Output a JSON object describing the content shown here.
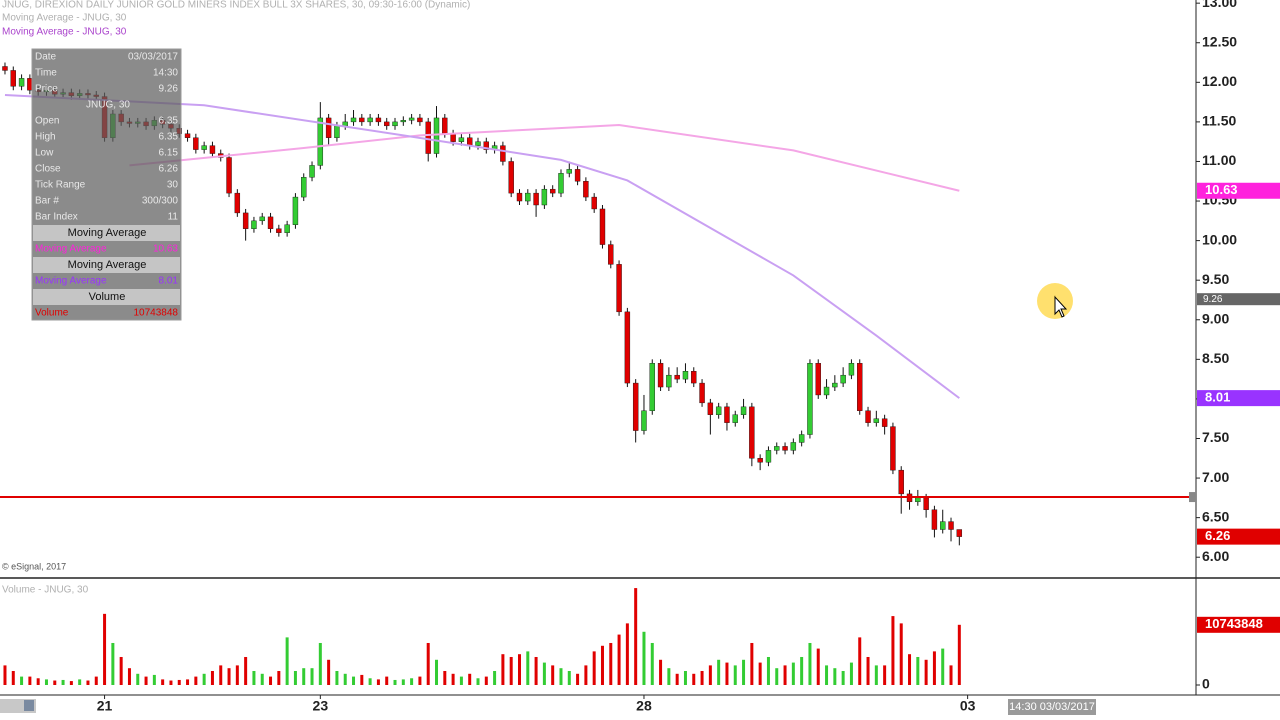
{
  "header": {
    "title": "JNUG, DIREXION DAILY JUNIOR GOLD MINERS INDEX BULL 3X SHARES, 30, 09:30-16:00 (Dynamic)",
    "studies": [
      "Moving Average - JNUG, 30",
      "Moving Average - JNUG, 30"
    ]
  },
  "copyright": "© eSignal, 2017",
  "cursor": {
    "price": 9.26,
    "time_label": "14:30 03/03/2017"
  },
  "data_window": {
    "date_label": "Date",
    "date": "03/03/2017",
    "time_label": "Time",
    "time": "14:30",
    "price_label": "Price",
    "symbol": "JNUG, 30",
    "open_label": "Open",
    "high_label": "High",
    "low_label": "Low",
    "close_label": "Close",
    "tick_range_label": "Tick Range",
    "tick_range": 30,
    "bar_label": "Bar #",
    "bar": "300/300",
    "bar_index_label": "Bar Index",
    "bar_index": 11,
    "study_headers": [
      "Moving Average",
      "Moving Average",
      "Volume"
    ],
    "study_rows": [
      "Moving Average",
      "Moving Average",
      "Volume"
    ]
  },
  "chart_data": {
    "type": "candlestick",
    "up_color": "#33cc33",
    "down_color": "#e00000",
    "open": [
      12.2,
      12.15,
      11.95,
      12.05,
      11.9,
      11.88,
      11.9,
      11.85,
      11.87,
      11.83,
      11.86,
      11.84,
      11.82,
      11.3,
      11.6,
      11.5,
      11.48,
      11.5,
      11.45,
      11.52,
      11.47,
      11.42,
      11.35,
      11.3,
      11.15,
      11.2,
      11.1,
      11.05,
      10.6,
      10.35,
      10.15,
      10.25,
      10.3,
      10.15,
      10.1,
      10.2,
      10.55,
      10.8,
      10.95,
      11.55,
      11.3,
      11.45,
      11.5,
      11.55,
      11.5,
      11.55,
      11.5,
      11.45,
      11.5,
      11.52,
      11.55,
      11.5,
      11.1,
      11.55,
      11.35,
      11.25,
      11.3,
      11.2,
      11.25,
      11.15,
      11.2,
      11.0,
      10.6,
      10.5,
      10.6,
      10.45,
      10.65,
      10.6,
      10.85,
      10.9,
      10.75,
      10.55,
      10.4,
      9.95,
      9.7,
      9.1,
      8.2,
      7.6,
      7.85,
      8.45,
      8.15,
      8.3,
      8.25,
      8.35,
      8.2,
      7.95,
      7.8,
      7.9,
      7.7,
      7.8,
      7.9,
      7.25,
      7.2,
      7.35,
      7.4,
      7.35,
      7.45,
      7.55,
      8.45,
      8.05,
      8.15,
      8.2,
      8.3,
      8.45,
      7.85,
      7.7,
      7.75,
      7.65,
      7.1,
      6.8,
      6.7,
      6.75,
      6.6,
      6.35,
      6.45,
      6.35
    ],
    "high": [
      12.25,
      12.2,
      12.1,
      12.1,
      11.95,
      11.95,
      11.95,
      11.92,
      11.92,
      11.91,
      11.91,
      11.89,
      11.87,
      11.65,
      11.65,
      11.55,
      11.55,
      11.55,
      11.57,
      11.57,
      11.52,
      11.47,
      11.4,
      11.35,
      11.25,
      11.25,
      11.15,
      11.1,
      10.65,
      10.4,
      10.3,
      10.35,
      10.35,
      10.2,
      10.25,
      10.6,
      10.85,
      11.0,
      11.75,
      11.6,
      11.5,
      11.6,
      11.65,
      11.6,
      11.6,
      11.6,
      11.55,
      11.55,
      11.57,
      11.6,
      11.6,
      11.55,
      11.7,
      11.6,
      11.4,
      11.35,
      11.35,
      11.3,
      11.3,
      11.25,
      11.25,
      11.05,
      10.65,
      10.65,
      10.65,
      10.7,
      10.7,
      10.9,
      11.0,
      10.95,
      10.8,
      10.6,
      10.45,
      10.0,
      9.75,
      9.15,
      8.25,
      8.05,
      8.5,
      8.5,
      8.4,
      8.4,
      8.45,
      8.4,
      8.25,
      8.0,
      7.95,
      7.95,
      7.85,
      8.0,
      7.95,
      7.3,
      7.4,
      7.45,
      7.45,
      7.5,
      7.6,
      8.5,
      8.5,
      8.25,
      8.3,
      8.4,
      8.5,
      8.5,
      7.9,
      7.85,
      7.8,
      7.7,
      7.15,
      6.85,
      6.85,
      6.8,
      6.65,
      6.6,
      6.5,
      6.35
    ],
    "low": [
      12.1,
      11.9,
      11.9,
      11.85,
      11.83,
      11.83,
      11.8,
      11.8,
      11.78,
      11.78,
      11.79,
      11.77,
      11.25,
      11.25,
      11.45,
      11.43,
      11.43,
      11.4,
      11.4,
      11.42,
      11.37,
      11.3,
      11.25,
      11.1,
      11.1,
      11.05,
      11.0,
      10.55,
      10.3,
      10.0,
      10.1,
      10.2,
      10.1,
      10.05,
      10.05,
      10.15,
      10.5,
      10.75,
      10.9,
      11.2,
      11.25,
      11.4,
      11.45,
      11.45,
      11.45,
      11.45,
      11.4,
      11.4,
      11.45,
      11.47,
      11.45,
      11.0,
      11.05,
      11.3,
      11.2,
      11.2,
      11.15,
      11.15,
      11.1,
      11.1,
      10.95,
      10.55,
      10.45,
      10.45,
      10.3,
      10.4,
      10.55,
      10.55,
      10.8,
      10.7,
      10.5,
      10.35,
      9.9,
      9.65,
      9.05,
      8.15,
      7.45,
      7.55,
      7.8,
      8.1,
      8.1,
      8.2,
      8.2,
      8.15,
      7.9,
      7.55,
      7.75,
      7.6,
      7.65,
      7.75,
      7.15,
      7.1,
      7.15,
      7.3,
      7.3,
      7.3,
      7.4,
      7.5,
      8.0,
      8.0,
      8.1,
      8.15,
      8.25,
      7.8,
      7.65,
      7.65,
      7.55,
      7.05,
      6.55,
      6.6,
      6.65,
      6.5,
      6.25,
      6.3,
      6.2,
      6.15
    ],
    "close": [
      12.15,
      11.95,
      12.05,
      11.9,
      11.88,
      11.9,
      11.85,
      11.87,
      11.83,
      11.86,
      11.84,
      11.82,
      11.3,
      11.6,
      11.5,
      11.48,
      11.5,
      11.45,
      11.52,
      11.47,
      11.42,
      11.35,
      11.3,
      11.15,
      11.2,
      11.1,
      11.05,
      10.6,
      10.35,
      10.15,
      10.25,
      10.3,
      10.15,
      10.1,
      10.2,
      10.55,
      10.8,
      10.95,
      11.55,
      11.3,
      11.45,
      11.5,
      11.55,
      11.5,
      11.55,
      11.5,
      11.45,
      11.5,
      11.52,
      11.55,
      11.5,
      11.1,
      11.55,
      11.35,
      11.25,
      11.3,
      11.2,
      11.25,
      11.15,
      11.2,
      11.0,
      10.6,
      10.5,
      10.6,
      10.45,
      10.65,
      10.6,
      10.85,
      10.9,
      10.75,
      10.55,
      10.4,
      9.95,
      9.7,
      9.1,
      8.2,
      7.6,
      7.85,
      8.45,
      8.15,
      8.3,
      8.25,
      8.35,
      8.2,
      7.95,
      7.8,
      7.9,
      7.7,
      7.8,
      7.9,
      7.25,
      7.2,
      7.35,
      7.4,
      7.35,
      7.45,
      7.55,
      8.45,
      8.05,
      8.15,
      8.2,
      8.3,
      8.45,
      7.85,
      7.7,
      7.75,
      7.65,
      7.1,
      6.8,
      6.7,
      6.75,
      6.6,
      6.35,
      6.45,
      6.35,
      6.26
    ],
    "series": [
      {
        "name": "Moving Average - JNUG, 30",
        "color": "#f4a6e6",
        "badge_color": "#ff22dd",
        "x": [
          15,
          36,
          50,
          74,
          95,
          115
        ],
        "values": [
          10.95,
          11.17,
          11.33,
          11.46,
          11.14,
          10.63
        ]
      },
      {
        "name": "Moving Average - JNUG, 30",
        "color": "#c9a0f2",
        "badge_color": "#9933ff",
        "x": [
          0,
          24,
          48,
          67,
          75,
          95,
          105,
          115
        ],
        "values": [
          11.84,
          11.71,
          11.33,
          11.02,
          10.76,
          9.56,
          8.8,
          8.01
        ]
      }
    ],
    "horizontal_line": 6.76,
    "xlim": [
      -0.6,
      143.4
    ],
    "xticks": [
      {
        "value": 12,
        "label": "21"
      },
      {
        "value": 38,
        "label": "23"
      },
      {
        "value": 77,
        "label": "28"
      },
      {
        "value": 116,
        "label": "03"
      }
    ],
    "ylim": [
      5.75,
      13.04
    ],
    "yticks": [
      {
        "value": 6,
        "label": "6.00"
      },
      {
        "value": 6.5,
        "label": "6.50"
      },
      {
        "value": 7,
        "label": "7.00"
      },
      {
        "value": 7.5,
        "label": "7.50"
      },
      {
        "value": 8,
        "label": "8.00"
      },
      {
        "value": 8.5,
        "label": "8.50"
      },
      {
        "value": 9,
        "label": "9.00"
      },
      {
        "value": 9.5,
        "label": "9.50"
      },
      {
        "value": 10,
        "label": "10.00"
      },
      {
        "value": 10.5,
        "label": "10.50"
      },
      {
        "value": 11,
        "label": "11.00"
      },
      {
        "value": 11.5,
        "label": "11.50"
      },
      {
        "value": 12,
        "label": "12.00"
      },
      {
        "value": 12.5,
        "label": "12.50"
      },
      {
        "value": 13,
        "label": "13.00"
      }
    ],
    "volume": {
      "title": "Volume - JNUG, 30",
      "badge_color": "#e00000",
      "values": [
        3500000,
        2500000,
        1500000,
        1500000,
        1200000,
        1000000,
        800000,
        900000,
        700000,
        1000000,
        800000,
        1500000,
        12700000,
        7500000,
        5000000,
        3000000,
        2000000,
        1500000,
        1800000,
        1000000,
        800000,
        900000,
        1000000,
        1500000,
        2000000,
        2500000,
        3500000,
        3000000,
        3500000,
        5000000,
        2500000,
        2000000,
        1500000,
        2500000,
        8500000,
        2500000,
        3000000,
        3000000,
        7500000,
        4500000,
        2500000,
        2000000,
        1500000,
        1800000,
        1200000,
        1000000,
        1500000,
        900000,
        1000000,
        1200000,
        1500000,
        7500000,
        4500000,
        2500000,
        2000000,
        1500000,
        2000000,
        1200000,
        1500000,
        2500000,
        5500000,
        5000000,
        5500000,
        6000000,
        5000000,
        4000000,
        3500000,
        3000000,
        2500000,
        2000000,
        3500000,
        6000000,
        7000000,
        7500000,
        9000000,
        11000000,
        17300000,
        9500000,
        7500000,
        4500000,
        3000000,
        2000000,
        2500000,
        2000000,
        2500000,
        3500000,
        4500000,
        4000000,
        3500000,
        4500000,
        7500000,
        4000000,
        5000000,
        3000000,
        3500000,
        4000000,
        5000000,
        7500000,
        6500000,
        3500000,
        3000000,
        2500000,
        4000000,
        8500000,
        5000000,
        3500000,
        3500000,
        12300000,
        11000000,
        5500000,
        5000000,
        4500000,
        6000000,
        6500000,
        3500000,
        10743848
      ],
      "ylim": [
        0,
        19100000
      ],
      "yticks": [
        0
      ]
    }
  }
}
